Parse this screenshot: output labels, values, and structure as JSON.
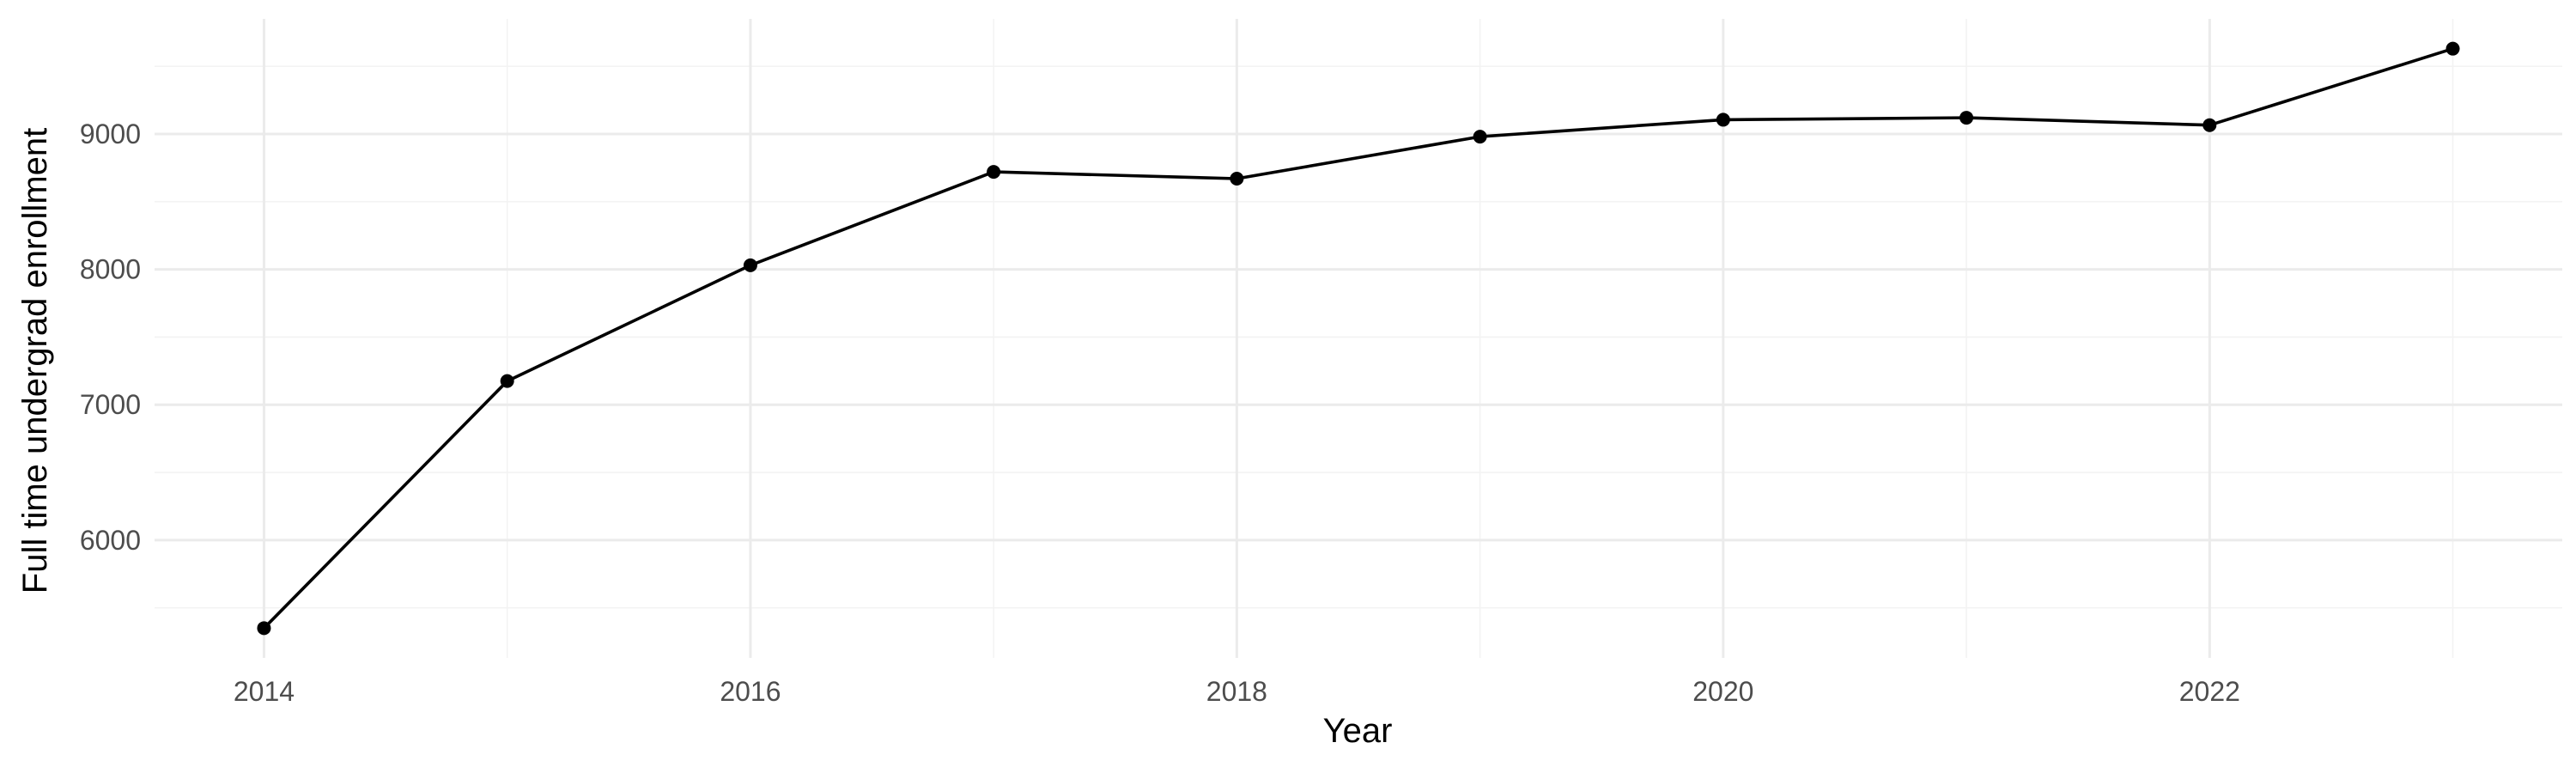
{
  "chart_data": {
    "type": "line",
    "title": "",
    "xlabel": "Year",
    "ylabel": "Full time undergrad enrollment",
    "x": [
      2014,
      2015,
      2016,
      2017,
      2018,
      2019,
      2020,
      2021,
      2022,
      2023
    ],
    "y": [
      5350,
      7175,
      8030,
      8720,
      8670,
      8980,
      9105,
      9120,
      9065,
      9630
    ],
    "xlim": [
      2013.55,
      2023.45
    ],
    "ylim": [
      5130,
      9850
    ],
    "x_major_ticks": [
      2014,
      2016,
      2018,
      2020,
      2022
    ],
    "x_minor_ticks": [
      2015,
      2017,
      2019,
      2021,
      2023
    ],
    "y_major_ticks": [
      6000,
      7000,
      8000,
      9000
    ],
    "y_minor_ticks": [
      5500,
      6500,
      7500,
      8500,
      9500
    ],
    "x_tick_labels": [
      "2014",
      "2016",
      "2018",
      "2020",
      "2022"
    ],
    "y_tick_labels": [
      "6000",
      "7000",
      "8000",
      "9000"
    ],
    "grid": true,
    "legend": "none",
    "line_color": "#000000",
    "point_color": "#000000"
  }
}
